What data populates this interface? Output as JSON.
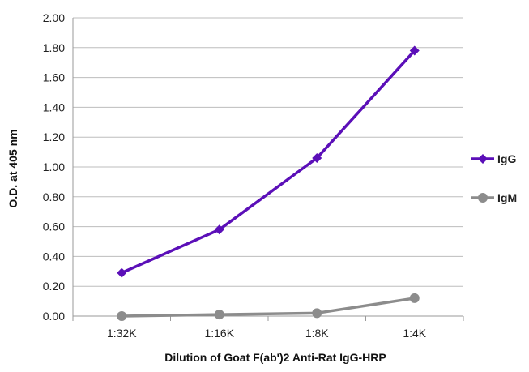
{
  "chart_data": {
    "type": "line",
    "title": "",
    "xlabel": "Dilution of Goat F(ab')2 Anti-Rat IgG-HRP",
    "ylabel": "O.D. at 405 nm",
    "categories": [
      "1:32K",
      "1:16K",
      "1:8K",
      "1:4K"
    ],
    "ylim": [
      0,
      2.0
    ],
    "yticks": [
      "0.00",
      "0.20",
      "0.40",
      "0.60",
      "0.80",
      "1.00",
      "1.20",
      "1.40",
      "1.60",
      "1.80",
      "2.00"
    ],
    "grid": true,
    "legend_position": "right",
    "series": [
      {
        "name": "IgG",
        "values": [
          0.29,
          0.58,
          1.06,
          1.78
        ],
        "color": "#5b0fb8",
        "marker": "diamond"
      },
      {
        "name": "IgM",
        "values": [
          0.0,
          0.01,
          0.02,
          0.12
        ],
        "color": "#8c8c8c",
        "marker": "circle"
      }
    ]
  }
}
